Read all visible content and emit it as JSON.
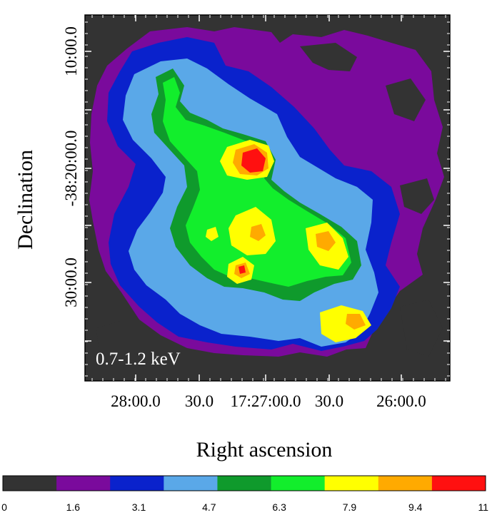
{
  "chart_data": {
    "type": "heatmap",
    "image_label": "0.7-1.2 keV",
    "xlabel": "Right ascension",
    "ylabel": "Declination",
    "x_ticks": [
      "28:00.0",
      "30.0",
      "17:27:00.0",
      "30.0",
      "26:00.0"
    ],
    "y_ticks": [
      "10:00.0",
      "-38:20:00.0",
      "30:00.0"
    ],
    "colorbar": {
      "ticks": [
        "0",
        "1.6",
        "3.1",
        "4.7",
        "6.3",
        "7.9",
        "9.4",
        "11"
      ],
      "range": [
        0,
        11
      ],
      "colors": [
        "#333333",
        "#7a0a9c",
        "#0a22cc",
        "#5aa8e8",
        "#0f9a2c",
        "#12ee2c",
        "#ffff00",
        "#ffaa00",
        "#ff1010"
      ]
    },
    "colors": {
      "background_dark": "#333333",
      "purple": "#7a0a9c",
      "blue": "#0a22cc",
      "light_blue": "#5aa8e8",
      "dark_green": "#0f9a2c",
      "bright_green": "#12ee2c",
      "yellow": "#ffff00",
      "orange": "#ffaa00",
      "red": "#ff1010"
    }
  }
}
